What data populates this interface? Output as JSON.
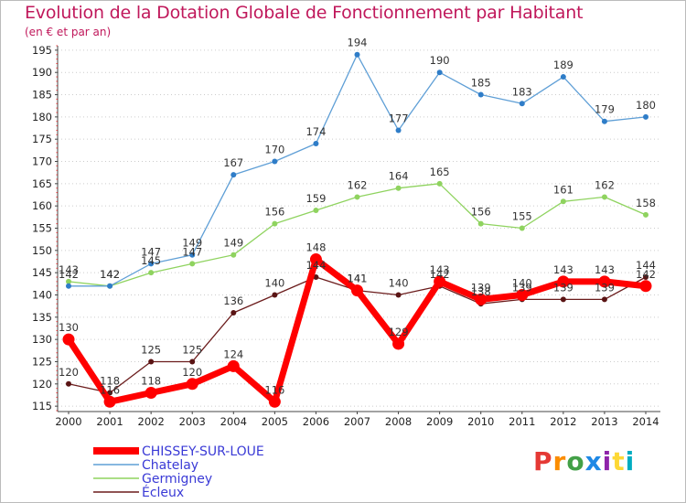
{
  "header": {
    "title": "Evolution de la Dotation Globale de Fonctionnement par Habitant",
    "subtitle": "(en € et par an)"
  },
  "logo": {
    "text": "Proxiti",
    "colors": [
      "#e53935",
      "#fb8c00",
      "#43a047",
      "#1e88e5",
      "#8e24aa",
      "#fdd835",
      "#00acc1"
    ]
  },
  "chart_data": {
    "type": "line",
    "title": "Evolution de la Dotation Globale de Fonctionnement par Habitant",
    "subtitle": "(en € et par an)",
    "xlabel": "",
    "ylabel": "",
    "ylim": [
      114,
      196
    ],
    "yticks": [
      115,
      120,
      125,
      130,
      135,
      140,
      145,
      150,
      155,
      160,
      165,
      170,
      175,
      180,
      185,
      190,
      195
    ],
    "x": [
      "2000",
      "2001",
      "2002",
      "2003",
      "2004",
      "2005",
      "2006",
      "2007",
      "2008",
      "2009",
      "2010",
      "2011",
      "2012",
      "2013",
      "2014"
    ],
    "grid": "horizontal dotted",
    "legend_position": "bottom-left",
    "series": [
      {
        "name": "Ecleux",
        "legend_label": "Écleux",
        "color": "#6b1c1c",
        "values": [
          120,
          118,
          125,
          125,
          136,
          140,
          144,
          141,
          140,
          142,
          138,
          139,
          139,
          139,
          144
        ]
      },
      {
        "name": "Germigney",
        "legend_label": "Germigney",
        "color": "#8fd35f",
        "values": [
          143,
          142,
          145,
          147,
          149,
          156,
          159,
          162,
          164,
          165,
          156,
          155,
          161,
          162,
          158
        ]
      },
      {
        "name": "Chatelay",
        "legend_label": "Chatelay",
        "color": "#5f9fd6",
        "values": [
          142,
          142,
          147,
          149,
          167,
          170,
          174,
          194,
          177,
          190,
          185,
          183,
          189,
          179,
          180
        ]
      },
      {
        "name": "CHISSEY-SUR-LOUE",
        "legend_label": "CHISSEY-SUR-LOUE",
        "color": "#ff0000",
        "values": [
          130,
          116,
          118,
          120,
          124,
          116,
          148,
          141,
          129,
          143,
          139,
          140,
          143,
          143,
          142
        ]
      }
    ],
    "data_labels": [
      {
        "series": "Ecleux",
        "values": [
          "120",
          "118",
          "125",
          "125",
          "136",
          "140",
          "144",
          "141",
          "140",
          "142",
          "138",
          "139",
          "139",
          "139",
          "144"
        ]
      },
      {
        "series": "Germigney",
        "values": [
          "143",
          "142",
          "145",
          "147",
          "149",
          "156",
          "159",
          "162",
          "164",
          "165",
          "156",
          "155",
          "161",
          "162",
          "158"
        ]
      },
      {
        "series": "Chatelay",
        "values": [
          "142",
          "142",
          "147",
          "149",
          "167",
          "170",
          "174",
          "194",
          "177",
          "190",
          "185",
          "183",
          "189",
          "179",
          "180"
        ]
      },
      {
        "series": "CHISSEY-SUR-LOUE",
        "values": [
          "130",
          "116",
          "118",
          "120",
          "124",
          "116",
          "148",
          "141",
          "129",
          "143",
          "139",
          "140",
          "143",
          "143",
          "142"
        ]
      }
    ]
  }
}
